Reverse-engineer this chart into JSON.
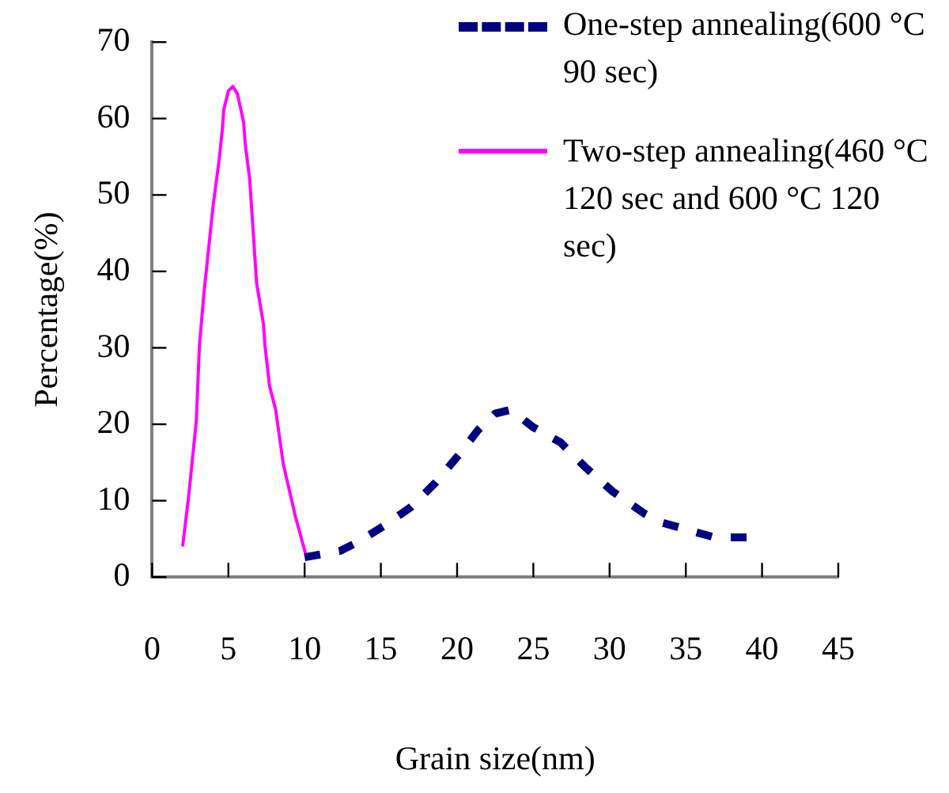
{
  "chart_data": {
    "type": "line",
    "xlabel": "Grain size(nm)",
    "ylabel": "Percentage(%)",
    "xlim": [
      0,
      45
    ],
    "xticks": [
      0,
      5,
      10,
      15,
      20,
      25,
      30,
      35,
      40,
      45
    ],
    "ylim": [
      0,
      70
    ],
    "yticks": [
      0,
      10,
      20,
      30,
      40,
      50,
      60,
      70
    ],
    "grid": false,
    "legend": "top right",
    "marker": "none",
    "series": [
      {
        "name": "One-step annealing(600 °C 90 sec)",
        "color": "#000080",
        "line_style": "dashed",
        "x": [
          10.0,
          12.3,
          13.5,
          15.2,
          17.0,
          18.6,
          20.2,
          21.4,
          22.5,
          23.5,
          25.0,
          26.8,
          28.4,
          30.2,
          32.3,
          33.5,
          35.8,
          36.9,
          39.1
        ],
        "values": [
          2.6,
          3.4,
          4.6,
          6.7,
          9.2,
          12.4,
          16.2,
          19.3,
          21.4,
          21.9,
          19.6,
          17.6,
          14.4,
          11.2,
          8.3,
          7.1,
          5.8,
          5.2,
          5.2
        ]
      },
      {
        "name": "Two-step annealing(460 °C 120 sec and 600 °C 120 sec)",
        "color": "#ff00ff",
        "line_style": "solid",
        "x": [
          2.0,
          2.4,
          2.9,
          3.1,
          3.4,
          4.0,
          4.4,
          4.6,
          4.7,
          5.0,
          5.3,
          5.6,
          6.0,
          6.1,
          6.4,
          6.85,
          7.3,
          7.4,
          7.7,
          8.1,
          8.6,
          9.4,
          10.1
        ],
        "values": [
          4.0,
          10.7,
          20.5,
          30.3,
          37.2,
          48.6,
          54.7,
          58.5,
          61.2,
          63.6,
          64.2,
          63.2,
          59.5,
          56.8,
          52.0,
          38.5,
          33.1,
          30.3,
          25.0,
          21.9,
          14.8,
          7.9,
          2.8
        ]
      }
    ]
  }
}
